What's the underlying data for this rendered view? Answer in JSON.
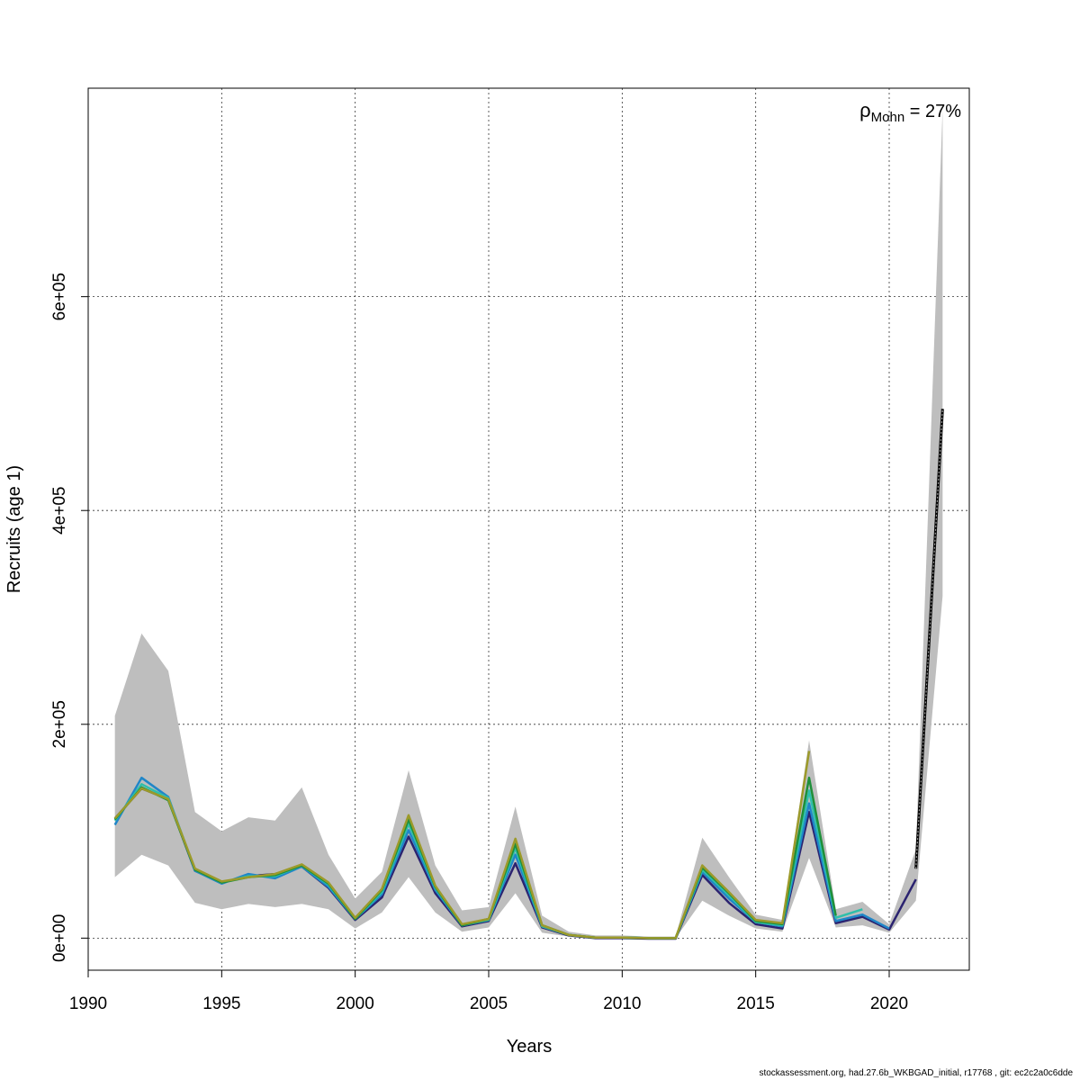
{
  "chart_data": {
    "type": "line",
    "xlabel": "Years",
    "ylabel": "Recruits (age 1)",
    "xlim": [
      1990,
      2023
    ],
    "ylim": [
      -30000,
      795000
    ],
    "x_ticks": [
      1990,
      1995,
      2000,
      2005,
      2010,
      2015,
      2020
    ],
    "x_tick_labels": [
      "1990",
      "1995",
      "2000",
      "2005",
      "2010",
      "2015",
      "2020"
    ],
    "y_ticks": [
      0,
      200000,
      400000,
      600000
    ],
    "y_tick_labels": [
      "0e+00",
      "2e+05",
      "4e+05",
      "6e+05"
    ],
    "grid": true,
    "annotation": {
      "symbol": "ρ",
      "subscript": "Mohn",
      "text": " = 27%"
    },
    "confidence_band": {
      "years": [
        1991,
        1992,
        1993,
        1994,
        1995,
        1996,
        1997,
        1998,
        1999,
        2000,
        2001,
        2002,
        2003,
        2004,
        2005,
        2006,
        2007,
        2008,
        2009,
        2010,
        2011,
        2012,
        2013,
        2014,
        2015,
        2016,
        2017,
        2018,
        2019,
        2020,
        2021,
        2022
      ],
      "lower": [
        57000,
        78000,
        68000,
        33000,
        27000,
        32000,
        29000,
        32000,
        27000,
        9000,
        24000,
        57000,
        24000,
        6000,
        10000,
        42000,
        5000,
        1500,
        0,
        0,
        0,
        0,
        35000,
        21000,
        9000,
        6000,
        75000,
        10000,
        12000,
        5000,
        35000,
        320000
      ],
      "upper": [
        208000,
        285000,
        250000,
        118000,
        100000,
        113000,
        110000,
        141000,
        78000,
        37000,
        62000,
        157000,
        68000,
        26000,
        29000,
        123000,
        21000,
        6000,
        2500,
        2500,
        1500,
        1500,
        94000,
        57000,
        22000,
        17000,
        185000,
        27000,
        34000,
        13000,
        83000,
        775000
      ],
      "color": "#bebebe"
    },
    "series": [
      {
        "color": "#000000",
        "x": [
          2021,
          2022
        ],
        "values": [
          65000,
          495000
        ]
      },
      {
        "color": "#2b2370",
        "x": [
          1991,
          1992,
          1993,
          1994,
          1995,
          1996,
          1997,
          1998,
          1999,
          2000,
          2001,
          2002,
          2003,
          2004,
          2005,
          2006,
          2007,
          2008,
          2009,
          2010,
          2011,
          2012,
          2013,
          2014,
          2015,
          2016,
          2017,
          2018,
          2019,
          2020,
          2021
        ],
        "values": [
          112000,
          140000,
          130000,
          63000,
          52000,
          58000,
          60000,
          67000,
          47000,
          17000,
          38000,
          95000,
          42000,
          11000,
          16000,
          70000,
          10000,
          2500,
          0,
          0,
          -500,
          -500,
          59000,
          33000,
          13000,
          9000,
          118000,
          14000,
          20000,
          8000,
          55000
        ]
      },
      {
        "color": "#1f86c8",
        "x": [
          1991,
          1992,
          1993,
          1994,
          1995,
          1996,
          1997,
          1998,
          1999,
          2000,
          2001,
          2002,
          2003,
          2004,
          2005,
          2006,
          2007,
          2008,
          2009,
          2010,
          2011,
          2012,
          2013,
          2014,
          2015,
          2016,
          2017,
          2018,
          2019,
          2020
        ],
        "values": [
          106000,
          150000,
          132000,
          63000,
          51000,
          60000,
          56000,
          67000,
          48000,
          18000,
          41000,
          101000,
          45000,
          12000,
          17000,
          78000,
          11000,
          3000,
          500,
          500,
          0,
          0,
          62000,
          37000,
          15000,
          11000,
          126000,
          16000,
          22000,
          9000
        ]
      },
      {
        "color": "#2fbfaa",
        "x": [
          1991,
          1992,
          1993,
          1994,
          1995,
          1996,
          1997,
          1998,
          1999,
          2000,
          2001,
          2002,
          2003,
          2004,
          2005,
          2006,
          2007,
          2008,
          2009,
          2010,
          2011,
          2012,
          2013,
          2014,
          2015,
          2016,
          2017,
          2018,
          2019
        ],
        "values": [
          110000,
          144000,
          131000,
          64000,
          52000,
          58000,
          58000,
          68000,
          50000,
          18000,
          43000,
          107000,
          47000,
          12000,
          17000,
          84000,
          11000,
          3000,
          500,
          500,
          0,
          0,
          64000,
          40000,
          15000,
          12000,
          138000,
          19000,
          27000
        ]
      },
      {
        "color": "#1f8f3a",
        "x": [
          1991,
          1992,
          1993,
          1994,
          1995,
          1996,
          1997,
          1998,
          1999,
          2000,
          2001,
          2002,
          2003,
          2004,
          2005,
          2006,
          2007,
          2008,
          2009,
          2010,
          2011,
          2012,
          2013,
          2014,
          2015,
          2016,
          2017,
          2018
        ],
        "values": [
          111000,
          141000,
          129000,
          64000,
          52000,
          57000,
          59000,
          68000,
          51000,
          18000,
          45000,
          111000,
          48000,
          12000,
          18000,
          88000,
          12000,
          3000,
          500,
          500,
          0,
          0,
          66000,
          42000,
          16000,
          13000,
          150000,
          21000
        ]
      },
      {
        "color": "#9c9a2a",
        "x": [
          1991,
          1992,
          1993,
          1994,
          1995,
          1996,
          1997,
          1998,
          1999,
          2000,
          2001,
          2002,
          2003,
          2004,
          2005,
          2006,
          2007,
          2008,
          2009,
          2010,
          2011,
          2012,
          2013,
          2014,
          2015,
          2016,
          2017
        ],
        "values": [
          112000,
          140000,
          130000,
          65000,
          53000,
          57000,
          60000,
          69000,
          52000,
          19000,
          46000,
          115000,
          49000,
          13000,
          18000,
          93000,
          12000,
          3000,
          500,
          500,
          0,
          0,
          68000,
          43000,
          17000,
          14000,
          175000
        ]
      }
    ]
  },
  "footer_text": "stockassessment.org, had.27.6b_WKBGAD_initial, r17768 , git: ec2c2a0c6dde"
}
